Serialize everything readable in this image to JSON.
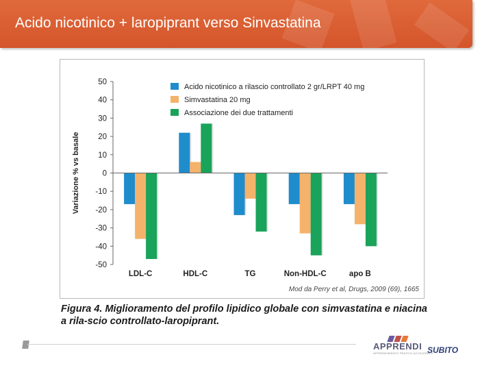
{
  "slide": {
    "title": "Acido nicotinico + laropiprant verso Sinvastatina"
  },
  "figure": {
    "source_note": "Mod da Perry et al, Drugs, 2009 (69), 1665",
    "caption": "Figura 4. Miglioramento del profilo lipidico globale con simvastatina e niacina a rila-scio controllato-laropiprant."
  },
  "logos": {
    "apprendi_name": "APPRENDI",
    "apprendi_tagline": "APPRENDIMENTO PRATICO ACCELERATO",
    "subito_name": "SUBITO",
    "apprendi_stripe_colors": [
      "#6b5aa0",
      "#c0504d",
      "#e8793a"
    ]
  },
  "colors": {
    "banner": "#d4552b",
    "series_blue": "#1f8ccc",
    "series_orange": "#f5b26b",
    "series_green": "#1aa35a"
  },
  "chart_data": {
    "type": "bar",
    "title": "",
    "xlabel": "",
    "ylabel": "Variazione % vs basale",
    "ylim": [
      -50,
      50
    ],
    "yticks": [
      50,
      40,
      30,
      20,
      10,
      0,
      -10,
      -20,
      -30,
      -40,
      -50
    ],
    "grid": false,
    "legend_position": "top-right",
    "categories": [
      "LDL-C",
      "HDL-C",
      "TG",
      "Non-HDL-C",
      "apo B"
    ],
    "series": [
      {
        "name": "Acido nicotinico a rilascio controllato 2 gr/LRPT 40 mg",
        "color": "#1f8ccc",
        "values": [
          -17,
          22,
          -23,
          -17,
          -17
        ]
      },
      {
        "name": "Simvastatina 20 mg",
        "color": "#f5b26b",
        "values": [
          -36,
          6,
          -14,
          -33,
          -28
        ]
      },
      {
        "name": "Associazione dei due trattamenti",
        "color": "#1aa35a",
        "values": [
          -47,
          27,
          -32,
          -45,
          -40
        ]
      }
    ]
  }
}
